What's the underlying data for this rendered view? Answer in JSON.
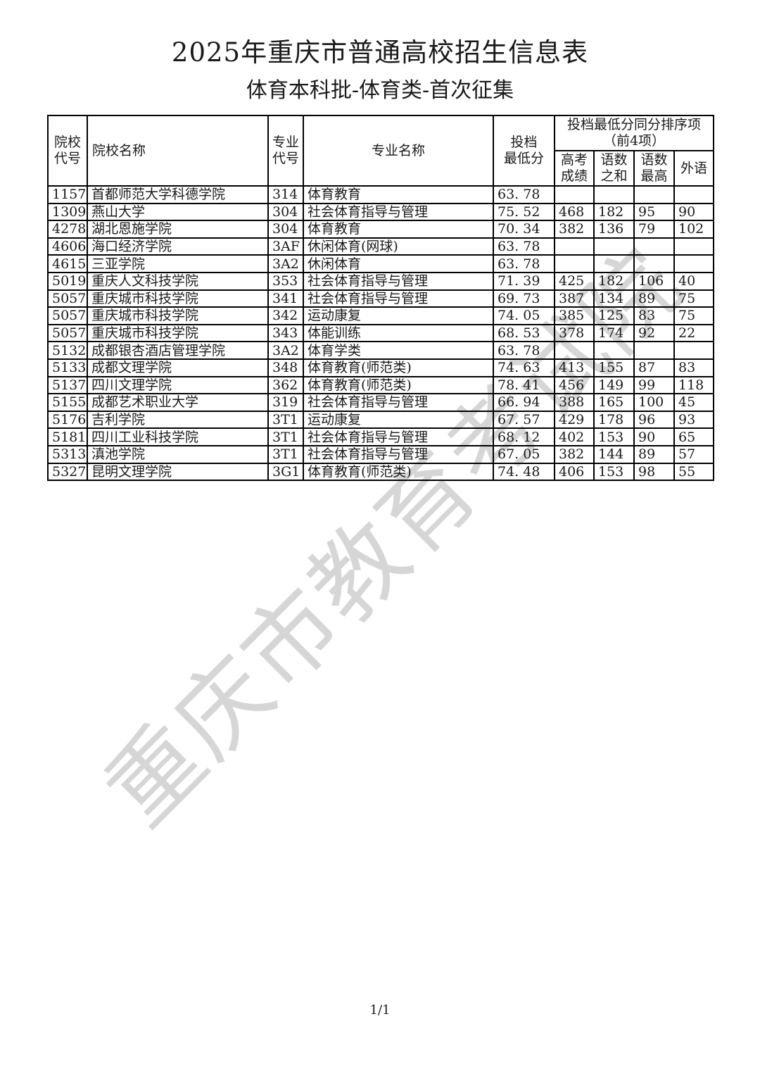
{
  "page": {
    "title": "2025年重庆市普通高校招生信息表",
    "subtitle": "体育本科批-体育类-首次征集",
    "page_number": "1/1",
    "watermark_text": "重庆市教育考试院",
    "colors": {
      "text": "#1a1a1a",
      "border": "#000000",
      "watermark": "#d6d6d6",
      "background": "#ffffff"
    }
  },
  "table": {
    "column_keys": [
      "school_code",
      "school_name",
      "major_code",
      "major_name",
      "min_score",
      "gaokao_score",
      "chn_math_sum",
      "chn_math_max",
      "foreign_lang"
    ],
    "headers": {
      "school_code": [
        "院校",
        "代号"
      ],
      "school_name": "院校名称",
      "major_code": [
        "专业",
        "代号"
      ],
      "major_name": "专业名称",
      "min_score": [
        "投档",
        "最低分"
      ],
      "tiebreak_group": [
        "投档最低分同分排序项",
        "（前4项）"
      ],
      "gaokao_score": [
        "高考",
        "成绩"
      ],
      "chn_math_sum": [
        "语数",
        "之和"
      ],
      "chn_math_max": [
        "语数",
        "最高"
      ],
      "foreign_lang": "外语"
    },
    "rows": [
      [
        "1157",
        "首都师范大学科德学院",
        "314",
        "体育教育",
        "63. 78",
        "",
        "",
        "",
        ""
      ],
      [
        "1309",
        "燕山大学",
        "304",
        "社会体育指导与管理",
        "75. 52",
        "468",
        "182",
        "95",
        "90"
      ],
      [
        "4278",
        "湖北恩施学院",
        "304",
        "体育教育",
        "70. 34",
        "382",
        "136",
        "79",
        "102"
      ],
      [
        "4606",
        "海口经济学院",
        "3AF",
        "休闲体育(网球)",
        "63. 78",
        "",
        "",
        "",
        ""
      ],
      [
        "4615",
        "三亚学院",
        "3A2",
        "休闲体育",
        "63. 78",
        "",
        "",
        "",
        ""
      ],
      [
        "5019",
        "重庆人文科技学院",
        "353",
        "社会体育指导与管理",
        "71. 39",
        "425",
        "182",
        "106",
        "40"
      ],
      [
        "5057",
        "重庆城市科技学院",
        "341",
        "社会体育指导与管理",
        "69. 73",
        "387",
        "134",
        "89",
        "75"
      ],
      [
        "5057",
        "重庆城市科技学院",
        "342",
        "运动康复",
        "74. 05",
        "385",
        "125",
        "83",
        "75"
      ],
      [
        "5057",
        "重庆城市科技学院",
        "343",
        "体能训练",
        "68. 53",
        "378",
        "174",
        "92",
        "22"
      ],
      [
        "5132",
        "成都银杏酒店管理学院",
        "3A2",
        "体育学类",
        "63. 78",
        "",
        "",
        "",
        ""
      ],
      [
        "5133",
        "成都文理学院",
        "348",
        "体育教育(师范类)",
        "74. 63",
        "413",
        "155",
        "87",
        "83"
      ],
      [
        "5137",
        "四川文理学院",
        "362",
        "体育教育(师范类)",
        "78. 41",
        "456",
        "149",
        "99",
        "118"
      ],
      [
        "5155",
        "成都艺术职业大学",
        "319",
        "社会体育指导与管理",
        "66. 94",
        "388",
        "165",
        "100",
        "45"
      ],
      [
        "5176",
        "吉利学院",
        "3T1",
        "运动康复",
        "67. 57",
        "429",
        "178",
        "96",
        "93"
      ],
      [
        "5181",
        "四川工业科技学院",
        "3T1",
        "社会体育指导与管理",
        "68. 12",
        "402",
        "153",
        "90",
        "65"
      ],
      [
        "5313",
        "滇池学院",
        "3T1",
        "社会体育指导与管理",
        "67. 05",
        "382",
        "144",
        "89",
        "57"
      ],
      [
        "5327",
        "昆明文理学院",
        "3G1",
        "体育教育(师范类)",
        "74. 48",
        "406",
        "153",
        "98",
        "55"
      ]
    ]
  }
}
